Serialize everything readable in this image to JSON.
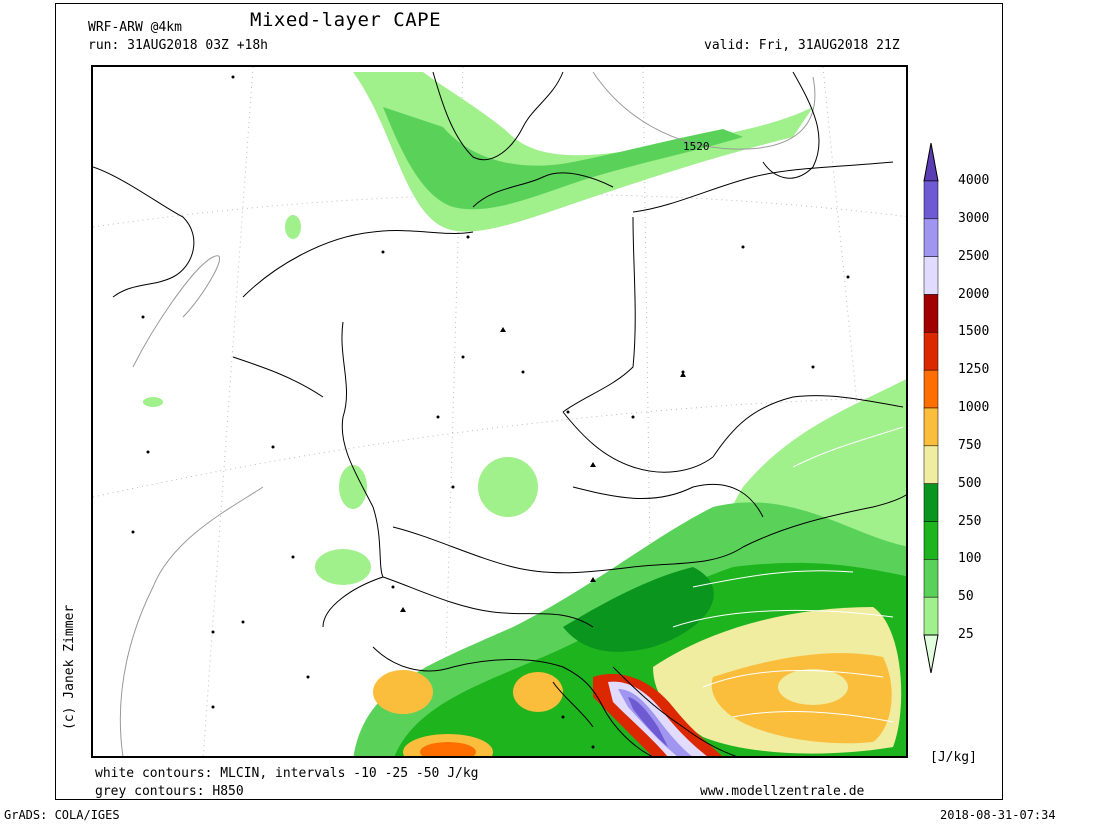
{
  "header": {
    "model": "WRF-ARW @4km",
    "title": "Mixed-layer CAPE",
    "run": "run: 31AUG2018 03Z +18h",
    "valid": "valid: Fri, 31AUG2018 21Z"
  },
  "map": {
    "contour_label": "1520"
  },
  "footer": {
    "white_contours": "white contours: MLCIN, intervals -10 -25 -50 J/kg",
    "grey_contours": "grey contours: H850",
    "website": "www.modellzentrale.de",
    "grads": "GrADS: COLA/IGES",
    "timestamp": "2018-08-31-07:34",
    "credit": "(c) Janek Zimmer"
  },
  "legend": {
    "unit": "[J/kg]",
    "levels": [
      "25",
      "50",
      "100",
      "250",
      "500",
      "750",
      "1000",
      "1250",
      "1500",
      "2000",
      "2500",
      "3000",
      "4000"
    ],
    "colors": [
      "#e1ffdc",
      "#a0f08c",
      "#5ad25a",
      "#1eb41e",
      "#0a961e",
      "#f0eca0",
      "#fabe3c",
      "#ff6e00",
      "#dc2800",
      "#a00000",
      "#e1dcff",
      "#a096f0",
      "#6e5ad2",
      "#5a3cb4"
    ]
  }
}
